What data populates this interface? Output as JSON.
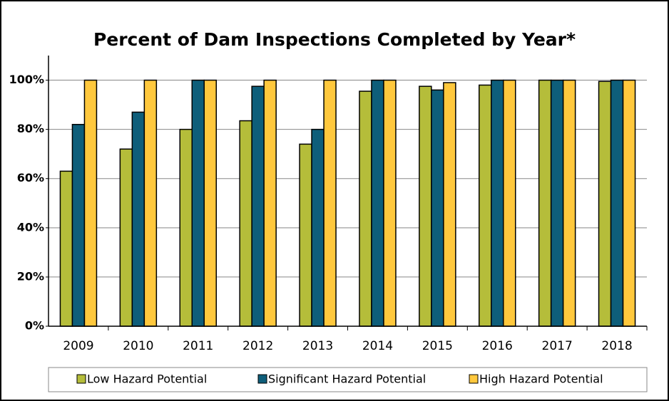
{
  "chart_data": {
    "type": "bar",
    "title": "Percent of Dam Inspections Completed by Year*",
    "categories": [
      "2009",
      "2010",
      "2011",
      "2012",
      "2013",
      "2014",
      "2015",
      "2016",
      "2017",
      "2018"
    ],
    "series": [
      {
        "name": "Low Hazard Potential",
        "color": "#b5bd3a",
        "values": [
          63,
          72,
          80,
          83.5,
          74,
          95.5,
          97.5,
          98,
          100,
          99.5
        ]
      },
      {
        "name": "Significant Hazard Potential",
        "color": "#0e5e7a",
        "values": [
          82,
          87,
          100,
          97.5,
          80,
          100,
          96,
          100,
          100,
          100
        ]
      },
      {
        "name": "High Hazard Potential",
        "color": "#ffc83d",
        "values": [
          100,
          100,
          100,
          100,
          100,
          100,
          99,
          100,
          100,
          100
        ]
      }
    ],
    "ylim": [
      0,
      110
    ],
    "yticks": [
      {
        "value": 0,
        "label": "0%"
      },
      {
        "value": 20,
        "label": "20%"
      },
      {
        "value": 40,
        "label": "40%"
      },
      {
        "value": 60,
        "label": "60%"
      },
      {
        "value": 80,
        "label": "80%"
      },
      {
        "value": 100,
        "label": "100%"
      }
    ],
    "grid": true,
    "legend": "bottom"
  }
}
